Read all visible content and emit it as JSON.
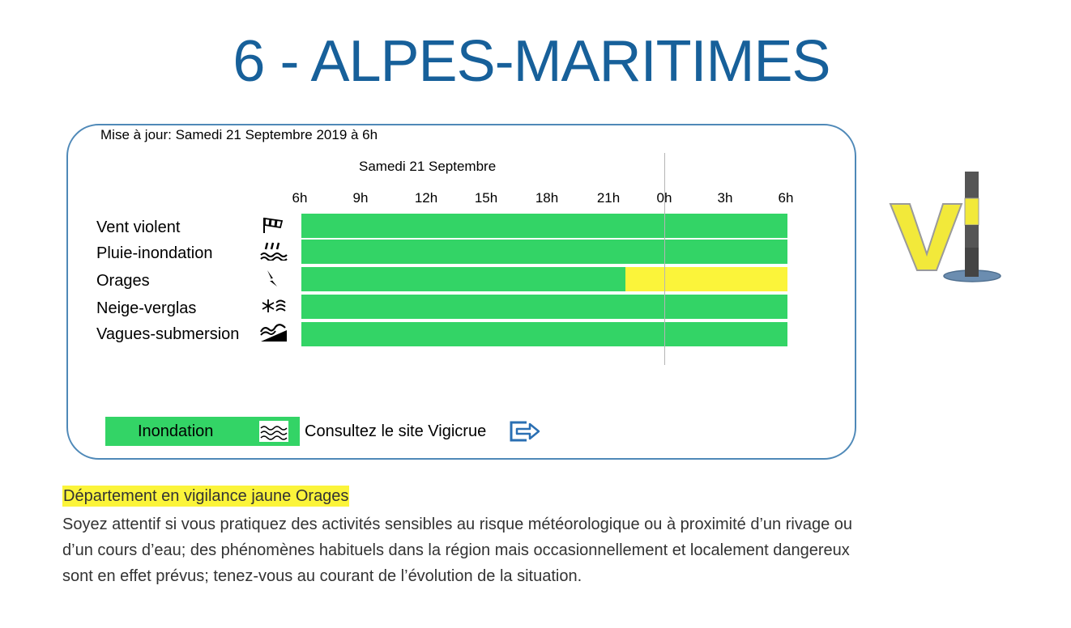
{
  "page_title": "6 - ALPES-MARITIMES",
  "panel": {
    "update_text": "Mise à jour: Samedi 21 Septembre 2019 à 6h",
    "day_label": "Samedi 21 Septembre",
    "hours": [
      "6h",
      "9h",
      "12h",
      "15h",
      "18h",
      "21h",
      "0h",
      "3h",
      "6h"
    ],
    "colors": {
      "green": "#33d466",
      "yellow": "#fbf43a"
    },
    "rows": [
      {
        "label": "Vent violent",
        "icon": "windsock-icon",
        "segments": [
          {
            "level": "green",
            "fraction": 1.0
          }
        ]
      },
      {
        "label": "Pluie-inondation",
        "icon": "rain-flood-icon",
        "segments": [
          {
            "level": "green",
            "fraction": 1.0
          }
        ]
      },
      {
        "label": "Orages",
        "icon": "lightning-icon",
        "segments": [
          {
            "level": "green",
            "fraction": 0.667
          },
          {
            "level": "yellow",
            "fraction": 0.333
          }
        ]
      },
      {
        "label": "Neige-verglas",
        "icon": "snow-ice-icon",
        "segments": [
          {
            "level": "green",
            "fraction": 1.0
          }
        ]
      },
      {
        "label": "Vagues-submersion",
        "icon": "waves-submersion-icon",
        "segments": [
          {
            "level": "green",
            "fraction": 1.0
          }
        ]
      }
    ],
    "legend": {
      "label": "Inondation",
      "icon": "flood-waves-icon",
      "link_text": "Consultez le site Vigicrue",
      "link_icon": "exit-arrow-icon"
    }
  },
  "logo": {
    "icon": "vigilance-logo-icon"
  },
  "alert": {
    "title": "Département en vigilance jaune Orages",
    "text": "Soyez attentif si vous pratiquez des activités sensibles au risque météorologique ou à proximité d’un rivage ou d’un cours d’eau; des phénomènes habituels dans la région mais occasionnellement et localement dangereux sont en effet prévus; tenez-vous au courant de l’évolution de la situation."
  }
}
